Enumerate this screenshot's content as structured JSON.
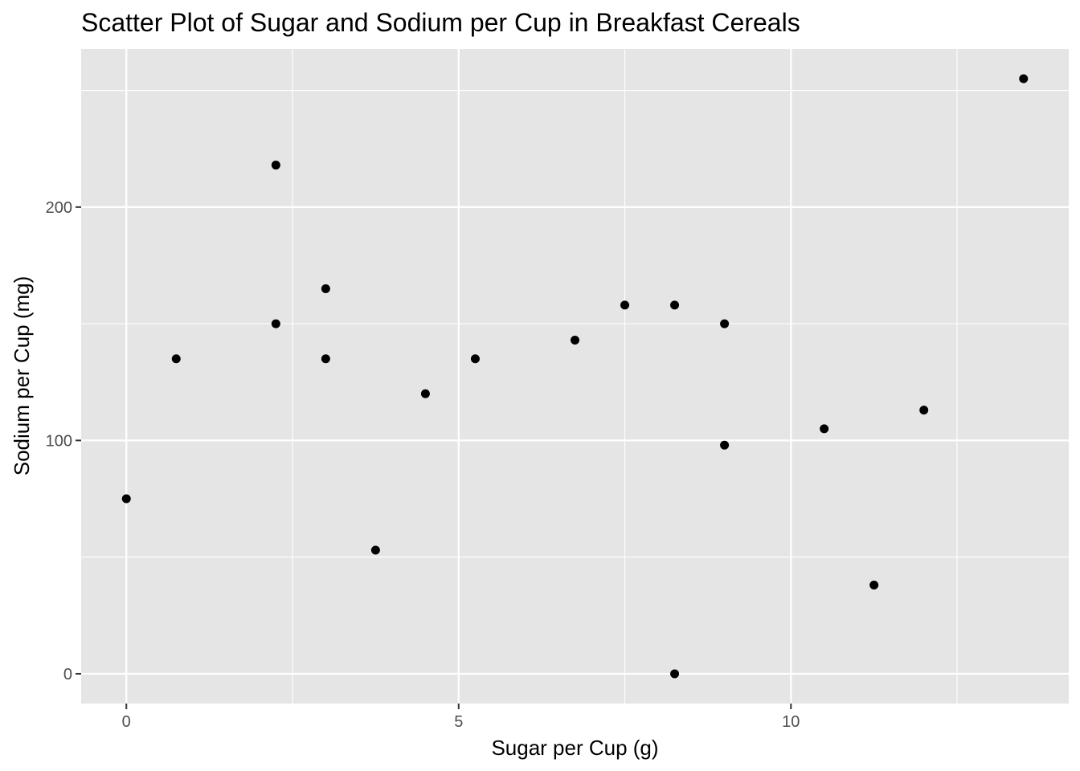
{
  "chart_data": {
    "type": "scatter",
    "title": "Scatter Plot of Sugar and Sodium per Cup in Breakfast Cereals",
    "xlabel": "Sugar per Cup (g)",
    "ylabel": "Sodium per Cup (mg)",
    "xlim": [
      -0.68,
      14.18
    ],
    "ylim": [
      -12.75,
      267.75
    ],
    "x_ticks": [
      0,
      5,
      10
    ],
    "x_tick_labels": [
      "0",
      "5",
      "10"
    ],
    "x_minor_ticks": [
      2.5,
      7.5,
      12.5
    ],
    "y_ticks": [
      0,
      100,
      200
    ],
    "y_tick_labels": [
      "0",
      "100",
      "200"
    ],
    "y_minor_ticks": [
      50,
      150,
      250
    ],
    "grid": true,
    "legend": "none",
    "points": [
      {
        "x": 0.0,
        "y": 75
      },
      {
        "x": 0.75,
        "y": 135
      },
      {
        "x": 2.25,
        "y": 218
      },
      {
        "x": 2.25,
        "y": 150
      },
      {
        "x": 3.0,
        "y": 165
      },
      {
        "x": 3.0,
        "y": 135
      },
      {
        "x": 3.75,
        "y": 53
      },
      {
        "x": 4.5,
        "y": 120
      },
      {
        "x": 5.25,
        "y": 135
      },
      {
        "x": 6.75,
        "y": 143
      },
      {
        "x": 7.5,
        "y": 158
      },
      {
        "x": 8.25,
        "y": 158
      },
      {
        "x": 8.25,
        "y": 0
      },
      {
        "x": 9.0,
        "y": 150
      },
      {
        "x": 9.0,
        "y": 98
      },
      {
        "x": 10.5,
        "y": 105
      },
      {
        "x": 11.25,
        "y": 38
      },
      {
        "x": 12.0,
        "y": 113
      },
      {
        "x": 13.5,
        "y": 255
      }
    ],
    "colors": {
      "panel": "#e5e5e5",
      "grid": "#ffffff",
      "point": "#000000",
      "tick": "#333333"
    }
  }
}
